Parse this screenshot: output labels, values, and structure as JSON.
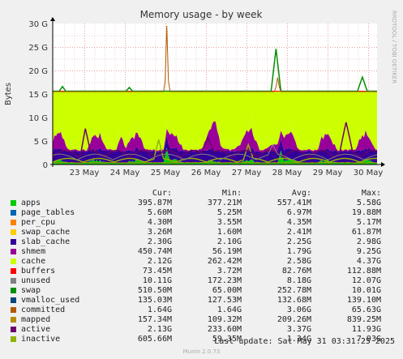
{
  "chart_data": {
    "type": "area",
    "title": "Memory usage - by week",
    "ylabel": "Bytes",
    "side_label": "RRDTOOL / TOBI OETIKER",
    "ylim": [
      0,
      30
    ],
    "yunit": "G",
    "yticks": [
      "0",
      "5 G",
      "10 G",
      "15 G",
      "20 G",
      "25 G",
      "30 G"
    ],
    "xticks": [
      "23 May",
      "24 May",
      "25 May",
      "26 May",
      "27 May",
      "28 May",
      "29 May",
      "30 May"
    ],
    "legend_header": {
      "cur": "Cur:",
      "min": "Min:",
      "avg": "Avg:",
      "max": "Max:"
    },
    "series": [
      {
        "name": "apps",
        "color": "#00cc00",
        "cur": "395.87M",
        "min": "377.21M",
        "avg": "557.41M",
        "max": "5.58G"
      },
      {
        "name": "page_tables",
        "color": "#0066b3",
        "cur": "5.60M",
        "min": "5.25M",
        "avg": "6.97M",
        "max": "19.88M"
      },
      {
        "name": "per_cpu",
        "color": "#ff8000",
        "cur": "4.30M",
        "min": "3.55M",
        "avg": "4.35M",
        "max": "5.17M"
      },
      {
        "name": "swap_cache",
        "color": "#ffcc00",
        "cur": "3.26M",
        "min": "1.60M",
        "avg": "2.41M",
        "max": "61.87M"
      },
      {
        "name": "slab_cache",
        "color": "#330099",
        "cur": "2.30G",
        "min": "2.10G",
        "avg": "2.25G",
        "max": "2.98G"
      },
      {
        "name": "shmem",
        "color": "#990099",
        "cur": "450.74M",
        "min": "56.19M",
        "avg": "1.79G",
        "max": "9.25G"
      },
      {
        "name": "cache",
        "color": "#ccff00",
        "cur": "2.12G",
        "min": "262.42M",
        "avg": "2.58G",
        "max": "4.37G"
      },
      {
        "name": "buffers",
        "color": "#ff0000",
        "cur": "73.45M",
        "min": "3.72M",
        "avg": "82.76M",
        "max": "112.88M"
      },
      {
        "name": "unused",
        "color": "#808080",
        "cur": "10.11G",
        "min": "172.23M",
        "avg": "8.18G",
        "max": "12.07G"
      },
      {
        "name": "swap",
        "color": "#008f00",
        "cur": "510.50M",
        "min": "65.00M",
        "avg": "252.78M",
        "max": "10.01G"
      },
      {
        "name": "vmalloc_used",
        "color": "#00487d",
        "cur": "135.03M",
        "min": "127.53M",
        "avg": "132.68M",
        "max": "139.10M"
      },
      {
        "name": "committed",
        "color": "#b35a00",
        "cur": "1.64G",
        "min": "1.64G",
        "avg": "3.06G",
        "max": "65.63G"
      },
      {
        "name": "mapped",
        "color": "#b38f00",
        "cur": "157.34M",
        "min": "109.32M",
        "avg": "209.26M",
        "max": "839.25M"
      },
      {
        "name": "active",
        "color": "#6b006b",
        "cur": "2.13G",
        "min": "233.60M",
        "avg": "3.37G",
        "max": "11.93G"
      },
      {
        "name": "inactive",
        "color": "#8fb300",
        "cur": "605.66M",
        "min": "59.35M",
        "avg": "1.34G",
        "max": "7.93G"
      }
    ]
  },
  "footer": {
    "last_update": "Last update:  Sat May 31 03:31:25 2025",
    "version": "Munin 2.0.73"
  }
}
